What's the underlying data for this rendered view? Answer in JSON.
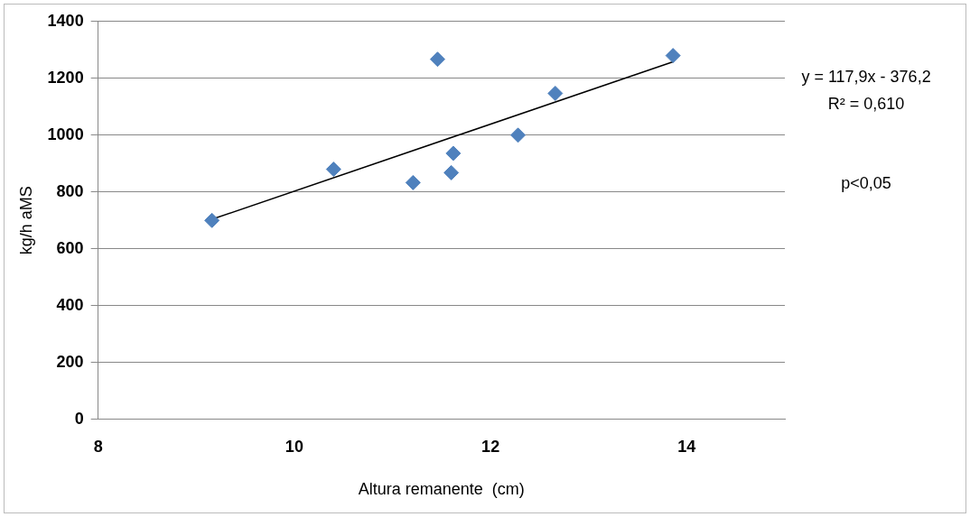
{
  "chart_data": {
    "type": "scatter",
    "xlabel": "Altura remanente  (cm)",
    "ylabel": "kg/h aMS",
    "xlim": [
      8,
      15
    ],
    "xticks": [
      8,
      10,
      12,
      14
    ],
    "ylim": [
      0,
      1400
    ],
    "yticks": [
      0,
      200,
      400,
      600,
      800,
      1000,
      1200,
      1400
    ],
    "grid": "y",
    "legend": false,
    "marker": "diamond",
    "series": [
      {
        "color": "#4f81bd",
        "x": [
          9.16,
          10.4,
          11.21,
          11.46,
          11.62,
          11.6,
          12.28,
          12.66,
          13.86
        ],
        "values": [
          700,
          880,
          833,
          1267,
          936,
          868,
          1000,
          1147,
          1280
        ]
      },
      {
        "type": "line",
        "color": "#000000",
        "marker": "none",
        "x": [
          9.16,
          13.86
        ],
        "values": [
          704,
          1258
        ]
      }
    ],
    "annotations": [
      "y = 117,9x - 376,2",
      "R² = 0,610",
      "p<0,05"
    ]
  }
}
